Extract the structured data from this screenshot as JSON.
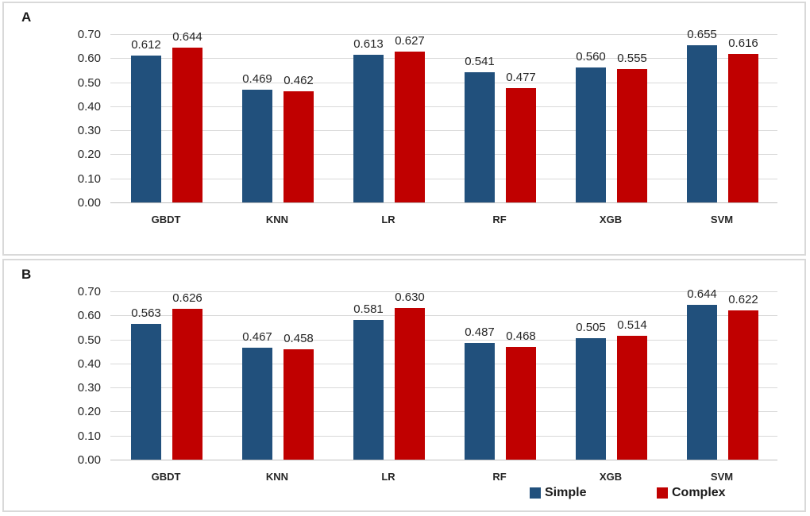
{
  "figure": {
    "colors": {
      "simple": "#21507C",
      "complex": "#C00000",
      "gridline": "#D9D9D9",
      "axis_line": "#BFBFBF",
      "panel_border": "#D9D9D9",
      "text": "#262626"
    },
    "legend": {
      "position": "bottom-right-of-panel-B",
      "items": [
        {
          "label": "Simple",
          "color": "#21507C"
        },
        {
          "label": "Complex",
          "color": "#C00000"
        }
      ]
    }
  },
  "chart_data": [
    {
      "type": "bar",
      "panel_label": "A",
      "categories": [
        "GBDT",
        "KNN",
        "LR",
        "RF",
        "XGB",
        "SVM"
      ],
      "series": [
        {
          "name": "Simple",
          "color": "#21507C",
          "values": [
            0.612,
            0.469,
            0.613,
            0.541,
            0.56,
            0.655
          ]
        },
        {
          "name": "Complex",
          "color": "#C00000",
          "values": [
            0.644,
            0.462,
            0.627,
            0.477,
            0.555,
            0.616
          ]
        }
      ],
      "title": "",
      "xlabel": "",
      "ylabel": "",
      "ylim": [
        0.0,
        0.7
      ],
      "ytick_step": 0.1,
      "ytick_labels": [
        "0.00",
        "0.10",
        "0.20",
        "0.30",
        "0.40",
        "0.50",
        "0.60",
        "0.70"
      ],
      "grid": true,
      "data_labels": true,
      "data_label_format": "0.000"
    },
    {
      "type": "bar",
      "panel_label": "B",
      "categories": [
        "GBDT",
        "KNN",
        "LR",
        "RF",
        "XGB",
        "SVM"
      ],
      "series": [
        {
          "name": "Simple",
          "color": "#21507C",
          "values": [
            0.563,
            0.467,
            0.581,
            0.487,
            0.505,
            0.644
          ]
        },
        {
          "name": "Complex",
          "color": "#C00000",
          "values": [
            0.626,
            0.458,
            0.63,
            0.468,
            0.514,
            0.622
          ]
        }
      ],
      "title": "",
      "xlabel": "",
      "ylabel": "",
      "ylim": [
        0.0,
        0.7
      ],
      "ytick_step": 0.1,
      "ytick_labels": [
        "0.00",
        "0.10",
        "0.20",
        "0.30",
        "0.40",
        "0.50",
        "0.60",
        "0.70"
      ],
      "grid": true,
      "data_labels": true,
      "data_label_format": "0.000",
      "has_legend": true
    }
  ]
}
